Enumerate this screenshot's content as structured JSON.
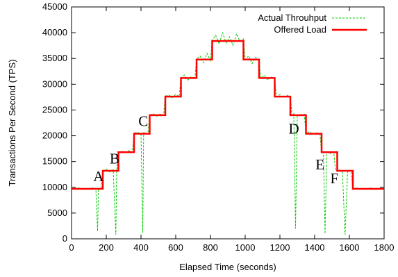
{
  "chart_data": {
    "type": "line",
    "xlabel": "Elapsed Time (seconds)",
    "ylabel": "Transactions Per Second (TPS)",
    "xlim": [
      0,
      1800
    ],
    "ylim": [
      0,
      45000
    ],
    "xticks": [
      0,
      200,
      400,
      600,
      800,
      1000,
      1200,
      1400,
      1600,
      1800
    ],
    "yticks": [
      0,
      5000,
      10000,
      15000,
      20000,
      25000,
      30000,
      35000,
      40000,
      45000
    ],
    "legend_position": "top-right",
    "series": [
      {
        "name": "Actual Throuhput",
        "style": "dashed",
        "color": "#00cc00",
        "points": [
          [
            0,
            9800
          ],
          [
            20,
            9600
          ],
          [
            40,
            9900
          ],
          [
            60,
            9700
          ],
          [
            80,
            9800
          ],
          [
            100,
            9600
          ],
          [
            120,
            9900
          ],
          [
            140,
            9800
          ],
          [
            150,
            1500
          ],
          [
            155,
            9800
          ],
          [
            170,
            9700
          ],
          [
            180,
            13200
          ],
          [
            200,
            13500
          ],
          [
            220,
            13000
          ],
          [
            240,
            13400
          ],
          [
            255,
            800
          ],
          [
            260,
            13300
          ],
          [
            270,
            16800
          ],
          [
            290,
            17000
          ],
          [
            310,
            16700
          ],
          [
            330,
            17100
          ],
          [
            350,
            16800
          ],
          [
            360,
            20500
          ],
          [
            380,
            20700
          ],
          [
            400,
            20300
          ],
          [
            410,
            1200
          ],
          [
            415,
            20600
          ],
          [
            440,
            20400
          ],
          [
            450,
            24000
          ],
          [
            470,
            24300
          ],
          [
            490,
            23800
          ],
          [
            510,
            24200
          ],
          [
            530,
            24000
          ],
          [
            540,
            27700
          ],
          [
            560,
            27900
          ],
          [
            580,
            27400
          ],
          [
            600,
            28000
          ],
          [
            620,
            27600
          ],
          [
            630,
            31200
          ],
          [
            650,
            31800
          ],
          [
            670,
            30800
          ],
          [
            690,
            31500
          ],
          [
            710,
            31000
          ],
          [
            720,
            34900
          ],
          [
            740,
            35500
          ],
          [
            760,
            34200
          ],
          [
            780,
            36000
          ],
          [
            800,
            34600
          ],
          [
            810,
            38500
          ],
          [
            830,
            39500
          ],
          [
            850,
            37800
          ],
          [
            870,
            40000
          ],
          [
            890,
            38000
          ],
          [
            910,
            39200
          ],
          [
            930,
            37500
          ],
          [
            950,
            39800
          ],
          [
            970,
            38300
          ],
          [
            990,
            38800
          ],
          [
            1000,
            34800
          ],
          [
            1020,
            35500
          ],
          [
            1040,
            34000
          ],
          [
            1060,
            35200
          ],
          [
            1080,
            34500
          ],
          [
            1090,
            31200
          ],
          [
            1110,
            31800
          ],
          [
            1130,
            30800
          ],
          [
            1150,
            31400
          ],
          [
            1170,
            31000
          ],
          [
            1180,
            27600
          ],
          [
            1200,
            28000
          ],
          [
            1220,
            27400
          ],
          [
            1240,
            27900
          ],
          [
            1260,
            27500
          ],
          [
            1270,
            24000
          ],
          [
            1280,
            24300
          ],
          [
            1290,
            2000
          ],
          [
            1300,
            24000
          ],
          [
            1320,
            23800
          ],
          [
            1340,
            24200
          ],
          [
            1350,
            20500
          ],
          [
            1370,
            20800
          ],
          [
            1390,
            20300
          ],
          [
            1410,
            20600
          ],
          [
            1430,
            20400
          ],
          [
            1440,
            16800
          ],
          [
            1450,
            17000
          ],
          [
            1460,
            1000
          ],
          [
            1470,
            16800
          ],
          [
            1490,
            16600
          ],
          [
            1510,
            16900
          ],
          [
            1520,
            13200
          ],
          [
            1540,
            13400
          ],
          [
            1560,
            13000
          ],
          [
            1575,
            800
          ],
          [
            1590,
            13300
          ],
          [
            1610,
            13100
          ],
          [
            1620,
            9700
          ],
          [
            1640,
            9900
          ],
          [
            1660,
            9600
          ],
          [
            1680,
            9800
          ],
          [
            1700,
            9700
          ],
          [
            1720,
            9900
          ],
          [
            1740,
            9600
          ],
          [
            1760,
            9800
          ],
          [
            1780,
            9700
          ],
          [
            1800,
            9800
          ]
        ]
      },
      {
        "name": "Offered Load",
        "style": "solid",
        "color": "#ff0000",
        "points": [
          [
            0,
            9700
          ],
          [
            180,
            9700
          ],
          [
            180,
            13200
          ],
          [
            270,
            13200
          ],
          [
            270,
            16800
          ],
          [
            360,
            16800
          ],
          [
            360,
            20400
          ],
          [
            450,
            20400
          ],
          [
            450,
            24000
          ],
          [
            540,
            24000
          ],
          [
            540,
            27600
          ],
          [
            630,
            27600
          ],
          [
            630,
            31200
          ],
          [
            720,
            31200
          ],
          [
            720,
            34800
          ],
          [
            810,
            34800
          ],
          [
            810,
            38400
          ],
          [
            990,
            38400
          ],
          [
            990,
            34800
          ],
          [
            1080,
            34800
          ],
          [
            1080,
            31200
          ],
          [
            1170,
            31200
          ],
          [
            1170,
            27600
          ],
          [
            1260,
            27600
          ],
          [
            1260,
            24000
          ],
          [
            1350,
            24000
          ],
          [
            1350,
            20400
          ],
          [
            1440,
            20400
          ],
          [
            1440,
            16800
          ],
          [
            1530,
            16800
          ],
          [
            1530,
            13200
          ],
          [
            1620,
            13200
          ],
          [
            1620,
            9700
          ],
          [
            1800,
            9700
          ]
        ]
      }
    ],
    "annotations": [
      {
        "text": "A",
        "x": 125,
        "y": 11200
      },
      {
        "text": "B",
        "x": 220,
        "y": 14600
      },
      {
        "text": "C",
        "x": 385,
        "y": 21900
      },
      {
        "text": "D",
        "x": 1250,
        "y": 20400
      },
      {
        "text": "E",
        "x": 1405,
        "y": 13500
      },
      {
        "text": "F",
        "x": 1490,
        "y": 10800
      }
    ]
  }
}
